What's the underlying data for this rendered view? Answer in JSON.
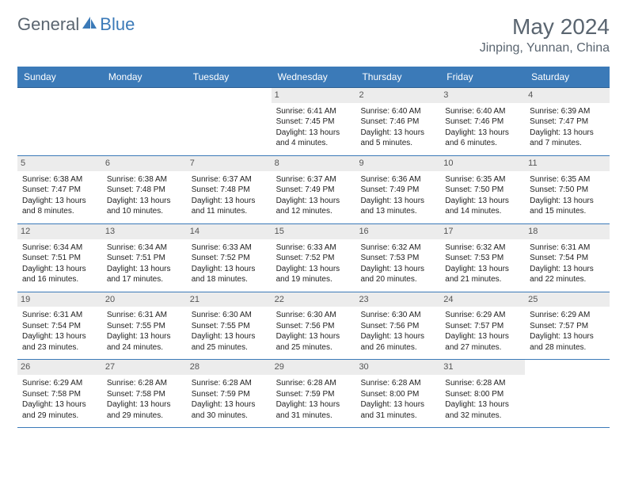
{
  "logo": {
    "text1": "General",
    "text2": "Blue"
  },
  "title": {
    "month": "May 2024",
    "location": "Jinping, Yunnan, China"
  },
  "colors": {
    "header_bg": "#3b7ab8",
    "header_text": "#ffffff",
    "row_border": "#3b7ab8",
    "daynum_bg": "#ececec",
    "body_text": "#222222",
    "title_color": "#5a6570"
  },
  "daysOfWeek": [
    "Sunday",
    "Monday",
    "Tuesday",
    "Wednesday",
    "Thursday",
    "Friday",
    "Saturday"
  ],
  "weeks": [
    [
      null,
      null,
      null,
      {
        "n": "1",
        "sr": "Sunrise: 6:41 AM",
        "ss": "Sunset: 7:45 PM",
        "dl": "Daylight: 13 hours and 4 minutes."
      },
      {
        "n": "2",
        "sr": "Sunrise: 6:40 AM",
        "ss": "Sunset: 7:46 PM",
        "dl": "Daylight: 13 hours and 5 minutes."
      },
      {
        "n": "3",
        "sr": "Sunrise: 6:40 AM",
        "ss": "Sunset: 7:46 PM",
        "dl": "Daylight: 13 hours and 6 minutes."
      },
      {
        "n": "4",
        "sr": "Sunrise: 6:39 AM",
        "ss": "Sunset: 7:47 PM",
        "dl": "Daylight: 13 hours and 7 minutes."
      }
    ],
    [
      {
        "n": "5",
        "sr": "Sunrise: 6:38 AM",
        "ss": "Sunset: 7:47 PM",
        "dl": "Daylight: 13 hours and 8 minutes."
      },
      {
        "n": "6",
        "sr": "Sunrise: 6:38 AM",
        "ss": "Sunset: 7:48 PM",
        "dl": "Daylight: 13 hours and 10 minutes."
      },
      {
        "n": "7",
        "sr": "Sunrise: 6:37 AM",
        "ss": "Sunset: 7:48 PM",
        "dl": "Daylight: 13 hours and 11 minutes."
      },
      {
        "n": "8",
        "sr": "Sunrise: 6:37 AM",
        "ss": "Sunset: 7:49 PM",
        "dl": "Daylight: 13 hours and 12 minutes."
      },
      {
        "n": "9",
        "sr": "Sunrise: 6:36 AM",
        "ss": "Sunset: 7:49 PM",
        "dl": "Daylight: 13 hours and 13 minutes."
      },
      {
        "n": "10",
        "sr": "Sunrise: 6:35 AM",
        "ss": "Sunset: 7:50 PM",
        "dl": "Daylight: 13 hours and 14 minutes."
      },
      {
        "n": "11",
        "sr": "Sunrise: 6:35 AM",
        "ss": "Sunset: 7:50 PM",
        "dl": "Daylight: 13 hours and 15 minutes."
      }
    ],
    [
      {
        "n": "12",
        "sr": "Sunrise: 6:34 AM",
        "ss": "Sunset: 7:51 PM",
        "dl": "Daylight: 13 hours and 16 minutes."
      },
      {
        "n": "13",
        "sr": "Sunrise: 6:34 AM",
        "ss": "Sunset: 7:51 PM",
        "dl": "Daylight: 13 hours and 17 minutes."
      },
      {
        "n": "14",
        "sr": "Sunrise: 6:33 AM",
        "ss": "Sunset: 7:52 PM",
        "dl": "Daylight: 13 hours and 18 minutes."
      },
      {
        "n": "15",
        "sr": "Sunrise: 6:33 AM",
        "ss": "Sunset: 7:52 PM",
        "dl": "Daylight: 13 hours and 19 minutes."
      },
      {
        "n": "16",
        "sr": "Sunrise: 6:32 AM",
        "ss": "Sunset: 7:53 PM",
        "dl": "Daylight: 13 hours and 20 minutes."
      },
      {
        "n": "17",
        "sr": "Sunrise: 6:32 AM",
        "ss": "Sunset: 7:53 PM",
        "dl": "Daylight: 13 hours and 21 minutes."
      },
      {
        "n": "18",
        "sr": "Sunrise: 6:31 AM",
        "ss": "Sunset: 7:54 PM",
        "dl": "Daylight: 13 hours and 22 minutes."
      }
    ],
    [
      {
        "n": "19",
        "sr": "Sunrise: 6:31 AM",
        "ss": "Sunset: 7:54 PM",
        "dl": "Daylight: 13 hours and 23 minutes."
      },
      {
        "n": "20",
        "sr": "Sunrise: 6:31 AM",
        "ss": "Sunset: 7:55 PM",
        "dl": "Daylight: 13 hours and 24 minutes."
      },
      {
        "n": "21",
        "sr": "Sunrise: 6:30 AM",
        "ss": "Sunset: 7:55 PM",
        "dl": "Daylight: 13 hours and 25 minutes."
      },
      {
        "n": "22",
        "sr": "Sunrise: 6:30 AM",
        "ss": "Sunset: 7:56 PM",
        "dl": "Daylight: 13 hours and 25 minutes."
      },
      {
        "n": "23",
        "sr": "Sunrise: 6:30 AM",
        "ss": "Sunset: 7:56 PM",
        "dl": "Daylight: 13 hours and 26 minutes."
      },
      {
        "n": "24",
        "sr": "Sunrise: 6:29 AM",
        "ss": "Sunset: 7:57 PM",
        "dl": "Daylight: 13 hours and 27 minutes."
      },
      {
        "n": "25",
        "sr": "Sunrise: 6:29 AM",
        "ss": "Sunset: 7:57 PM",
        "dl": "Daylight: 13 hours and 28 minutes."
      }
    ],
    [
      {
        "n": "26",
        "sr": "Sunrise: 6:29 AM",
        "ss": "Sunset: 7:58 PM",
        "dl": "Daylight: 13 hours and 29 minutes."
      },
      {
        "n": "27",
        "sr": "Sunrise: 6:28 AM",
        "ss": "Sunset: 7:58 PM",
        "dl": "Daylight: 13 hours and 29 minutes."
      },
      {
        "n": "28",
        "sr": "Sunrise: 6:28 AM",
        "ss": "Sunset: 7:59 PM",
        "dl": "Daylight: 13 hours and 30 minutes."
      },
      {
        "n": "29",
        "sr": "Sunrise: 6:28 AM",
        "ss": "Sunset: 7:59 PM",
        "dl": "Daylight: 13 hours and 31 minutes."
      },
      {
        "n": "30",
        "sr": "Sunrise: 6:28 AM",
        "ss": "Sunset: 8:00 PM",
        "dl": "Daylight: 13 hours and 31 minutes."
      },
      {
        "n": "31",
        "sr": "Sunrise: 6:28 AM",
        "ss": "Sunset: 8:00 PM",
        "dl": "Daylight: 13 hours and 32 minutes."
      },
      null
    ]
  ]
}
